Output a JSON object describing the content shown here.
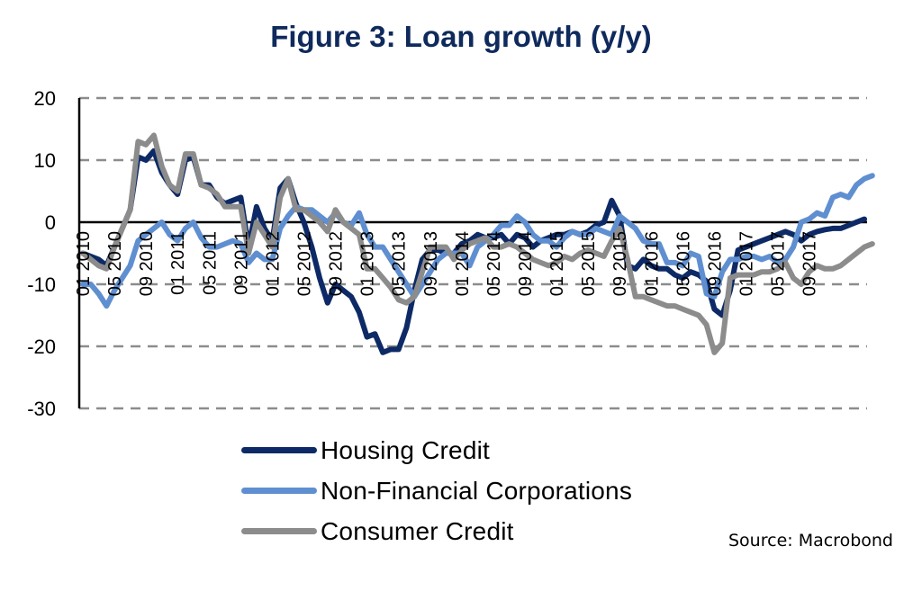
{
  "chart_data": {
    "type": "line",
    "title": "Figure 3: Loan growth (y/y)",
    "xlabel": "",
    "ylabel": "",
    "ylim": [
      -30,
      20
    ],
    "yticks": [
      "20",
      "10",
      "0",
      "-10",
      "-20",
      "-30"
    ],
    "ytick_values": [
      20,
      10,
      0,
      -10,
      -20,
      -30
    ],
    "grid": "horizontal dashed",
    "x_start": "01 2010",
    "x_end": "09 2017",
    "frequency": "monthly",
    "xtick_labels": [
      "01 2010",
      "05 2010",
      "09 2010",
      "01 2011",
      "05 2011",
      "09 2011",
      "01 2012",
      "05 2012",
      "09 2012",
      "01 2013",
      "05 2013",
      "09 2013",
      "01 2014",
      "05 2014",
      "09 2014",
      "01 2015",
      "05 2015",
      "09 2015",
      "01 2016",
      "05 2016",
      "09 2016",
      "01 2017",
      "05 2017",
      "09 2017"
    ],
    "legend_position": "bottom",
    "series": [
      {
        "name": "Housing Credit",
        "color": "#0d2a66",
        "values": [
          -5,
          -5.5,
          -6,
          -7,
          -4,
          -1,
          2,
          10.5,
          10,
          11.5,
          8,
          6,
          4.5,
          10,
          10.5,
          6,
          6,
          4,
          3,
          3.5,
          4,
          -4,
          2.5,
          -1,
          -3,
          5.5,
          7,
          3,
          0,
          -4,
          -9,
          -13,
          -10,
          -11,
          -12,
          -14.5,
          -18.5,
          -18,
          -21,
          -20.5,
          -20.5,
          -17,
          -11,
          -6,
          -4.5,
          -4.5,
          -5,
          -5,
          -3.5,
          -3,
          -2,
          -2.5,
          -2.5,
          -2,
          -3.5,
          -2,
          -2.5,
          -4,
          -3,
          -2.5,
          -2,
          -2,
          -1.5,
          -2,
          -1.5,
          -0.5,
          0,
          3.5,
          1,
          -7,
          -7.5,
          -6,
          -7,
          -7.5,
          -7.5,
          -8.5,
          -9,
          -8,
          -8.5,
          -9.5,
          -14,
          -15,
          -11,
          -4.5,
          -4,
          -3.5,
          -3,
          -2.5,
          -2,
          -1.5,
          -2,
          -3,
          -2,
          -1.5,
          -1.2,
          -1,
          -1,
          -0.5,
          0,
          0.5
        ],
        "values_note": "monthly readings"
      },
      {
        "name": "Non-Financial Corporations",
        "color": "#5f8fd0",
        "values": [
          -10,
          -10,
          -11.5,
          -13.5,
          -11,
          -9,
          -7,
          -3,
          -2,
          -1,
          0,
          -2,
          -3,
          -1,
          0,
          -2.5,
          -4,
          -4,
          -3.5,
          -3,
          -3.5,
          -6.5,
          -5,
          -6,
          -6,
          -1,
          1,
          2.5,
          2,
          2,
          1,
          0,
          1.5,
          0,
          -0.5,
          1.5,
          -2,
          -4,
          -4,
          -6,
          -8,
          -10,
          -12,
          -10,
          -8,
          -6,
          -5,
          -5,
          -5,
          -7,
          -4,
          -3,
          -2,
          -0.5,
          -0.5,
          1,
          0,
          -2,
          -3,
          -3,
          -4,
          -2.5,
          -1.5,
          -2,
          -2,
          -1,
          -1.5,
          -2,
          1,
          0,
          -1,
          -3,
          -3.5,
          -3.5,
          -6.5,
          -6.5,
          -7,
          -5,
          -5.5,
          -11.5,
          -12,
          -8,
          -6,
          -6,
          -5.5,
          -5.5,
          -6,
          -5.5,
          -6.5,
          -6,
          -4,
          0,
          0.5,
          1.5,
          1,
          4,
          4.5,
          4,
          6,
          7,
          7.5
        ],
        "values_note": "monthly readings"
      },
      {
        "name": "Consumer Credit",
        "color": "#8c8c8c",
        "values": [
          -5,
          -6,
          -7,
          -7.5,
          -4,
          -1,
          2,
          13,
          12.5,
          14,
          9,
          6,
          5,
          11,
          11,
          6,
          5.5,
          4.5,
          2.5,
          2.5,
          2.5,
          -5,
          0,
          -2,
          -4,
          4,
          7,
          2,
          2,
          1,
          0,
          -1.5,
          2,
          0,
          -1,
          -2,
          -7.5,
          -7.5,
          -9,
          -10.5,
          -12.5,
          -13,
          -12,
          -8,
          -4,
          -4,
          -4,
          -6,
          -4.5,
          -3.5,
          -3,
          -2.5,
          -4,
          -4,
          -3.5,
          -4,
          -5,
          -6,
          -6.5,
          -7,
          -6.5,
          -5.5,
          -6,
          -5,
          -4.5,
          -5,
          -5.5,
          -3,
          -1,
          -6,
          -12,
          -12,
          -12.5,
          -13,
          -13.5,
          -13.5,
          -14,
          -14.5,
          -15,
          -16.5,
          -21,
          -19.5,
          -9,
          -8.5,
          -8.5,
          -8.5,
          -8,
          -8,
          -7.5,
          -6.5,
          -9,
          -10,
          -8,
          -7,
          -7.5,
          -7.5,
          -7,
          -6,
          -5,
          -4,
          -3.5
        ],
        "values_note": "monthly readings"
      }
    ]
  },
  "legend": {
    "items": [
      {
        "label": "Housing Credit",
        "color": "#0d2a66"
      },
      {
        "label": "Non-Financial Corporations",
        "color": "#5f8fd0"
      },
      {
        "label": "Consumer Credit",
        "color": "#8c8c8c"
      }
    ]
  },
  "source": "Source: Macrobond",
  "title_color": "#0f2a5c"
}
